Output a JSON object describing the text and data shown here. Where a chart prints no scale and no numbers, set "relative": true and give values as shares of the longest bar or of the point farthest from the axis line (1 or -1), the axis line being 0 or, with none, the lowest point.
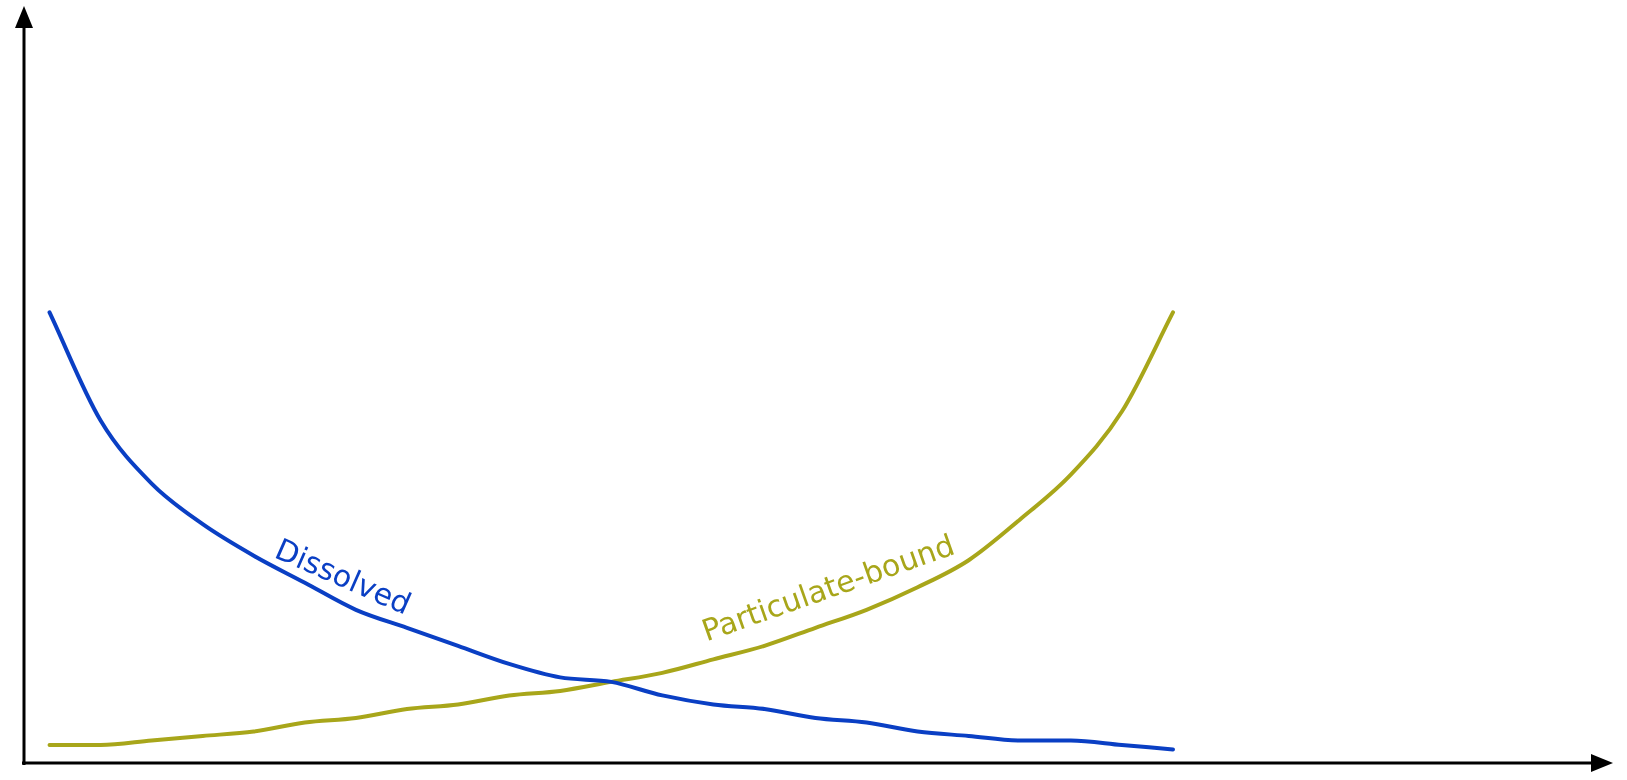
{
  "chart_data": {
    "type": "line",
    "relative": true,
    "grid": false,
    "legend": false,
    "marker": "none",
    "line_style": "solid",
    "categories": [
      null,
      null,
      null,
      null,
      null,
      null,
      null,
      null,
      null,
      null,
      null,
      null,
      null,
      null,
      null,
      null,
      null,
      null,
      null,
      null,
      null,
      null,
      null,
      null,
      null,
      null,
      null,
      null,
      null,
      null,
      null
    ],
    "series": [
      {
        "name": "Dissolved",
        "color": "#0a3fc4",
        "values": [
          1.0,
          0.76,
          0.62,
          0.53,
          0.46,
          0.4,
          0.34,
          0.3,
          0.26,
          0.22,
          0.19,
          0.18,
          0.15,
          0.13,
          0.12,
          0.1,
          0.09,
          0.07,
          0.06,
          0.05,
          0.05,
          0.04,
          0.03,
          null,
          null,
          null,
          null,
          null,
          null,
          null,
          null
        ]
      },
      {
        "name": "Particulate-bound",
        "color": "#a8a61a",
        "values": [
          0.04,
          0.04,
          0.05,
          0.06,
          0.07,
          0.09,
          0.1,
          0.12,
          0.13,
          0.15,
          0.16,
          0.18,
          0.2,
          0.23,
          0.26,
          0.3,
          0.34,
          0.39,
          0.45,
          0.54,
          0.64,
          0.78,
          1.0,
          null,
          null,
          null,
          null,
          null,
          null,
          null,
          null
        ]
      }
    ]
  }
}
